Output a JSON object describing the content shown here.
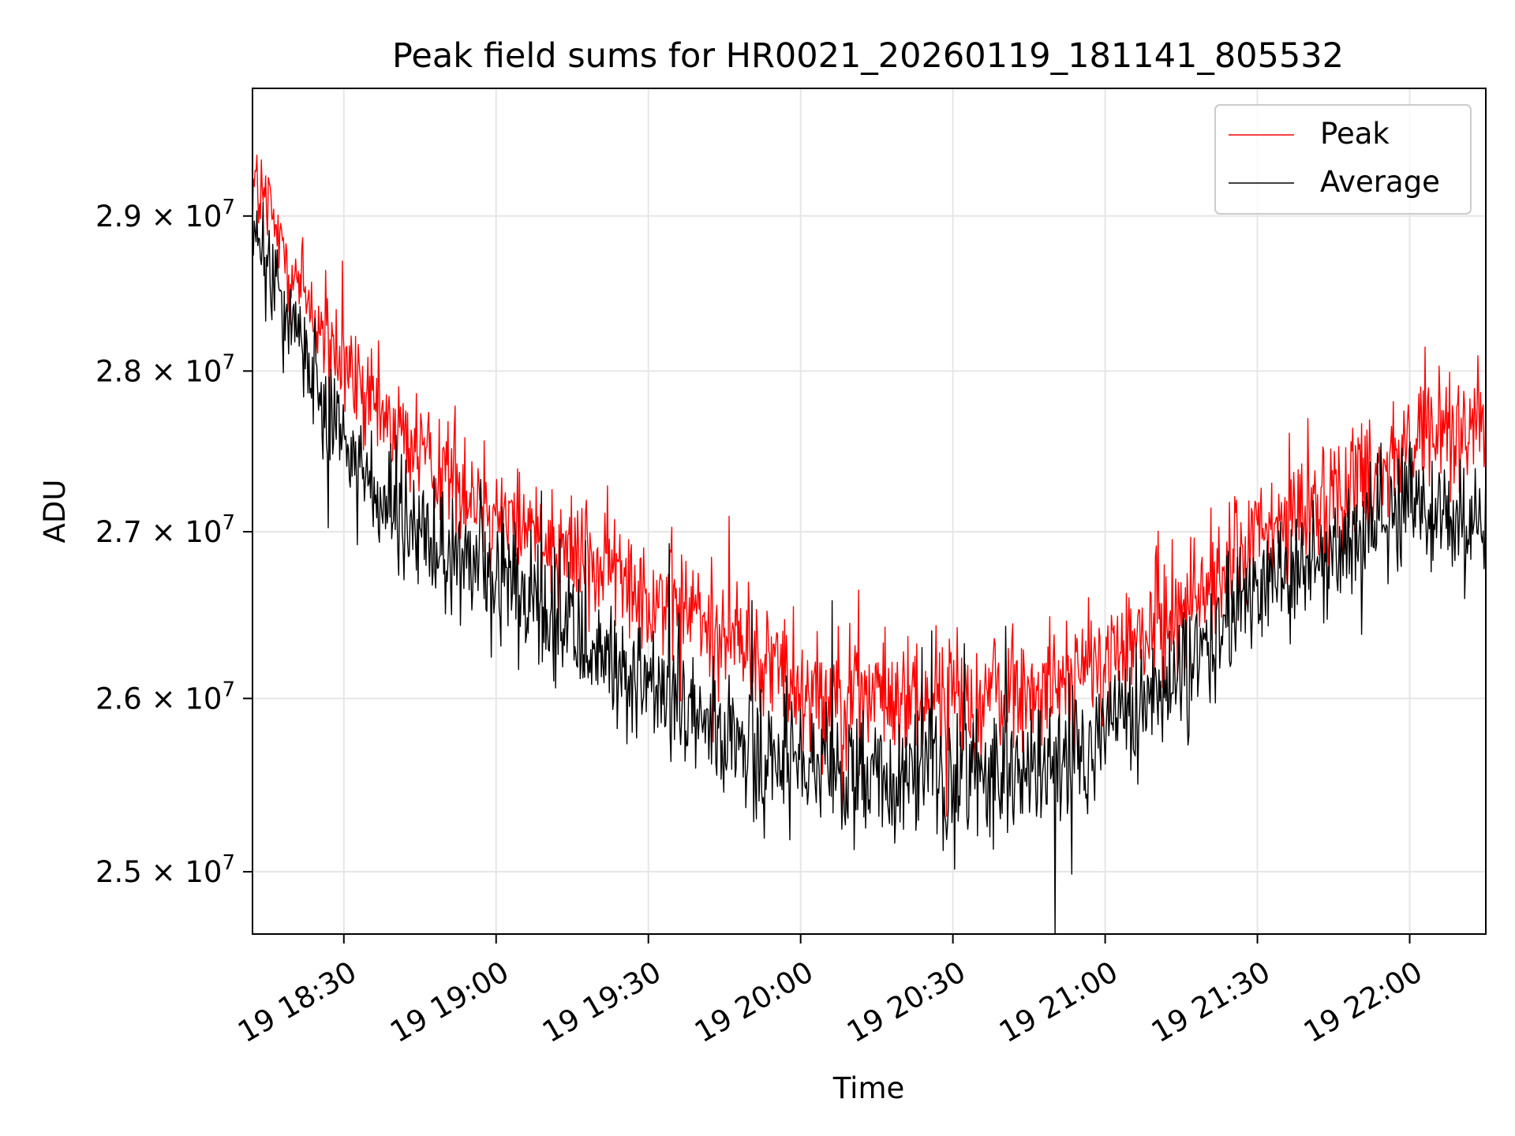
{
  "chart_data": {
    "type": "line",
    "title": "Peak field sums for HR0021_20260119_181141_805532",
    "xlabel": "Time",
    "ylabel": "ADU",
    "yscale": "log",
    "ylim": [
      24650000,
      29850000
    ],
    "xlim_minutes": [
      18.2,
      22.25
    ],
    "grid": true,
    "legend_position": "top-right",
    "x_ticks": [
      {
        "value": 18.5,
        "label": "19 18:30"
      },
      {
        "value": 19.0,
        "label": "19 19:00"
      },
      {
        "value": 19.5,
        "label": "19 19:30"
      },
      {
        "value": 20.0,
        "label": "19 20:00"
      },
      {
        "value": 20.5,
        "label": "19 20:30"
      },
      {
        "value": 21.0,
        "label": "19 21:00"
      },
      {
        "value": 21.5,
        "label": "19 21:30"
      },
      {
        "value": 22.0,
        "label": "19 22:00"
      }
    ],
    "y_ticks": [
      {
        "value": 25000000,
        "mantissa": "2.5",
        "exponent": "7"
      },
      {
        "value": 26000000,
        "mantissa": "2.6",
        "exponent": "7"
      },
      {
        "value": 27000000,
        "mantissa": "2.7",
        "exponent": "7"
      },
      {
        "value": 28000000,
        "mantissa": "2.8",
        "exponent": "7"
      },
      {
        "value": 29000000,
        "mantissa": "2.9",
        "exponent": "7"
      }
    ],
    "tick_times": "× 10",
    "series": [
      {
        "name": "Peak",
        "color": "#ff0000",
        "x": [
          18.2,
          18.3,
          18.45,
          18.6,
          18.75,
          19.0,
          19.25,
          19.5,
          19.75,
          20.0,
          20.25,
          20.5,
          20.75,
          21.0,
          21.25,
          21.5,
          21.75,
          22.0,
          22.25
        ],
        "values": [
          29250000,
          28800000,
          28150000,
          27750000,
          27500000,
          27150000,
          26900000,
          26650000,
          26400000,
          26100000,
          26000000,
          26000000,
          26050000,
          26200000,
          26550000,
          26950000,
          27250000,
          27550000,
          27700000
        ],
        "noise": 500000
      },
      {
        "name": "Average",
        "color": "#000000",
        "x": [
          18.2,
          18.3,
          18.45,
          18.6,
          18.75,
          19.0,
          19.25,
          19.5,
          19.75,
          20.0,
          20.25,
          20.5,
          20.75,
          21.0,
          21.25,
          21.5,
          21.75,
          22.0,
          22.25
        ],
        "values": [
          28850000,
          28450000,
          27800000,
          27250000,
          26950000,
          26700000,
          26400000,
          26050000,
          25750000,
          25550000,
          25550000,
          25550000,
          25550000,
          25800000,
          26100000,
          26700000,
          26900000,
          27150000,
          27050000
        ],
        "noise": 500000
      }
    ]
  }
}
